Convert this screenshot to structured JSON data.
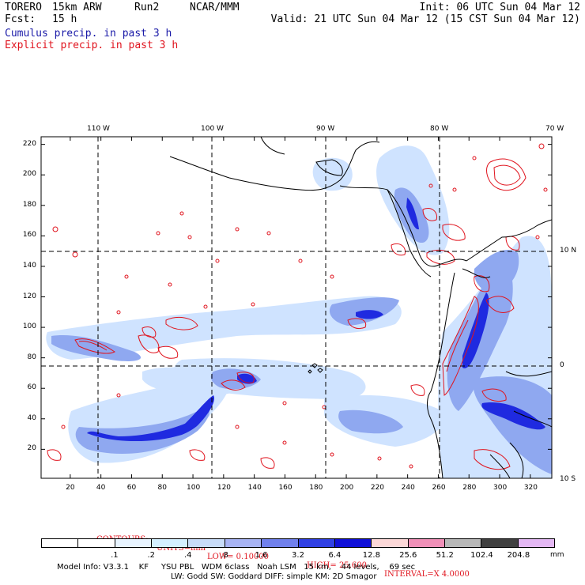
{
  "header": {
    "model": "TORERO",
    "resolution": "15km ARW",
    "run": "Run2",
    "org": "NCAR/MMM",
    "init": "Init: 06 UTC Sun 04 Mar 12",
    "fcst_label": "Fcst:",
    "fcst_value": "15 h",
    "valid": "Valid: 21 UTC Sun 04 Mar 12 (15 CST Sun 04 Mar 12)",
    "line1": "Cumulus precip. in past 3 h",
    "line2": "Explicit precip. in past 3 h"
  },
  "map": {
    "top_lon_labels": [
      "110 W",
      "100 W",
      "90 W",
      "80 W",
      "70 W"
    ],
    "right_lat_labels": [
      "10 N",
      "0",
      "10 S"
    ],
    "x_ticks": [
      "20",
      "40",
      "60",
      "80",
      "100",
      "120",
      "140",
      "160",
      "180",
      "200",
      "220",
      "240",
      "260",
      "280",
      "300",
      "320"
    ],
    "y_ticks": [
      "20",
      "40",
      "60",
      "80",
      "100",
      "120",
      "140",
      "160",
      "180",
      "200",
      "220"
    ],
    "x_range": [
      1,
      334
    ],
    "y_range": [
      1,
      225
    ],
    "colors": {
      "cumulus_light": "#cfe3ff",
      "cumulus_mid": "#8fa8f0",
      "cumulus_dark": "#1f2ae0",
      "explicit": "#e0141e",
      "coast": "#000000",
      "grid": "#000000"
    }
  },
  "contours_info": {
    "label": "CONTOURS:",
    "units": "UNITS=mm",
    "low": "LOW= 0.10000",
    "high": "HIGH= 25.600",
    "interval": "INTERVAL=X 4.0000"
  },
  "colorbar": {
    "unit": "mm",
    "labels": [
      ".1",
      ".2",
      ".4",
      ".8",
      "1.6",
      "3.2",
      "6.4",
      "12.8",
      "25.6",
      "51.2",
      "102.4",
      "204.8"
    ],
    "colors": [
      "#ffffff",
      "#ffffff",
      "#e8f4ff",
      "#d4f0ff",
      "#c8dcf8",
      "#a8b4f4",
      "#7080ec",
      "#3040e4",
      "#1010d8",
      "#fcd8d8",
      "#f090b8",
      "#b8b8b8",
      "#404040",
      "#e4b8f4"
    ]
  },
  "footer": {
    "line1": "Model Info: V3.3.1    KF     YSU PBL   WDM 6class   Noah LSM   15 km,    44 levels,    69 sec",
    "line2": "LW: Godd SW: Goddard DIFF: simple KM: 2D Smagor"
  }
}
